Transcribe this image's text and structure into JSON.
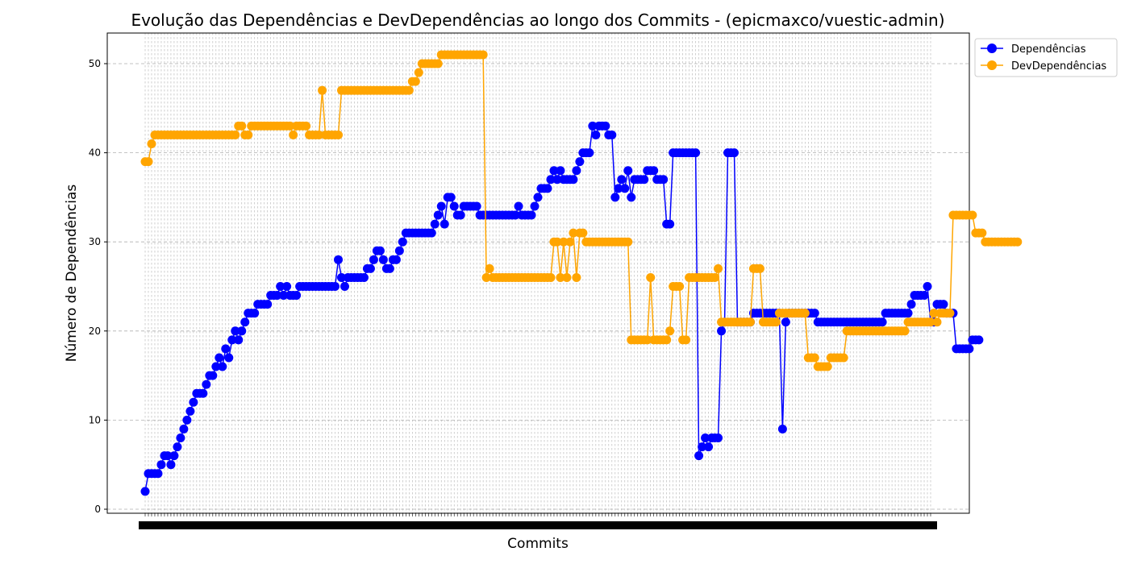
{
  "chart_data": {
    "type": "line",
    "title": "Evolução das Dependências e DevDependências ao longo dos Commits - (epicmaxco/vuestic-admin)",
    "xlabel": "Commits",
    "ylabel": "Número de Dependências",
    "ylim": [
      0,
      53
    ],
    "yticks": [
      0,
      10,
      20,
      30,
      40,
      50
    ],
    "grid": true,
    "legend_position": "top-right outside",
    "x_count": 245,
    "series": [
      {
        "name": "Dependências",
        "color": "#0000ff",
        "values": [
          2,
          4,
          4,
          4,
          4,
          5,
          6,
          6,
          5,
          6,
          7,
          8,
          9,
          10,
          11,
          12,
          13,
          13,
          13,
          14,
          15,
          15,
          16,
          17,
          16,
          18,
          17,
          19,
          20,
          19,
          20,
          21,
          22,
          22,
          22,
          23,
          23,
          23,
          23,
          24,
          24,
          24,
          25,
          24,
          25,
          24,
          24,
          24,
          25,
          25,
          25,
          25,
          25,
          25,
          25,
          25,
          25,
          25,
          25,
          25,
          28,
          26,
          25,
          26,
          26,
          26,
          26,
          26,
          26,
          27,
          27,
          28,
          29,
          29,
          28,
          27,
          27,
          28,
          28,
          29,
          30,
          31,
          31,
          31,
          31,
          31,
          31,
          31,
          31,
          31,
          32,
          33,
          34,
          32,
          35,
          35,
          34,
          33,
          33,
          34,
          34,
          34,
          34,
          34,
          33,
          33,
          33,
          33,
          33,
          33,
          33,
          33,
          33,
          33,
          33,
          33,
          34,
          33,
          33,
          33,
          33,
          34,
          35,
          36,
          36,
          36,
          37,
          38,
          37,
          38,
          37,
          37,
          37,
          37,
          38,
          39,
          40,
          40,
          40,
          43,
          42,
          43,
          43,
          43,
          42,
          42,
          35,
          36,
          37,
          36,
          38,
          35,
          37,
          37,
          37,
          37,
          38,
          38,
          38,
          37,
          37,
          37,
          32,
          32,
          40,
          40,
          40,
          40,
          40,
          40,
          40,
          40,
          6,
          7,
          8,
          7,
          8,
          8,
          8,
          20,
          21,
          40,
          40,
          40,
          21,
          21,
          21,
          21,
          21,
          22,
          22,
          22,
          22,
          22,
          22,
          22,
          22,
          22,
          9,
          21,
          22,
          22,
          22,
          22,
          22,
          22,
          22,
          22,
          22,
          21,
          21,
          21,
          21,
          21,
          21,
          21,
          21,
          21,
          21,
          21,
          21,
          21,
          21,
          21,
          21,
          21,
          21,
          21,
          21,
          21,
          22,
          22,
          22,
          22,
          22,
          22,
          22,
          22,
          23,
          24,
          24,
          24,
          24,
          25,
          21,
          21,
          23,
          23,
          23,
          22,
          22,
          22,
          18,
          18,
          18,
          18,
          18,
          19,
          19,
          19
        ]
      },
      {
        "name": "DevDependências",
        "color": "#ffa500",
        "values": [
          39,
          39,
          41,
          42,
          42,
          42,
          42,
          42,
          42,
          42,
          42,
          42,
          42,
          42,
          42,
          42,
          42,
          42,
          42,
          42,
          42,
          42,
          42,
          42,
          42,
          42,
          42,
          42,
          42,
          43,
          43,
          42,
          42,
          43,
          43,
          43,
          43,
          43,
          43,
          43,
          43,
          43,
          43,
          43,
          43,
          43,
          42,
          43,
          43,
          43,
          43,
          42,
          42,
          42,
          42,
          47,
          42,
          42,
          42,
          42,
          42,
          47,
          47,
          47,
          47,
          47,
          47,
          47,
          47,
          47,
          47,
          47,
          47,
          47,
          47,
          47,
          47,
          47,
          47,
          47,
          47,
          47,
          47,
          48,
          48,
          49,
          50,
          50,
          50,
          50,
          50,
          50,
          51,
          51,
          51,
          51,
          51,
          51,
          51,
          51,
          51,
          51,
          51,
          51,
          51,
          51,
          26,
          27,
          26,
          26,
          26,
          26,
          26,
          26,
          26,
          26,
          26,
          26,
          26,
          26,
          26,
          26,
          26,
          26,
          26,
          26,
          26,
          30,
          30,
          26,
          30,
          26,
          30,
          31,
          26,
          31,
          31,
          30,
          30,
          30,
          30,
          30,
          30,
          30,
          30,
          30,
          30,
          30,
          30,
          30,
          30,
          19,
          19,
          19,
          19,
          19,
          19,
          26,
          19,
          19,
          19,
          19,
          19,
          20,
          25,
          25,
          25,
          19,
          19,
          26,
          26,
          26,
          26,
          26,
          26,
          26,
          26,
          26,
          27,
          21,
          21,
          21,
          21,
          21,
          21,
          21,
          21,
          21,
          21,
          27,
          27,
          27,
          21,
          21,
          21,
          21,
          21,
          22,
          22,
          22,
          22,
          22,
          22,
          22,
          22,
          22,
          17,
          17,
          17,
          16,
          16,
          16,
          16,
          17,
          17,
          17,
          17,
          17,
          20,
          20,
          20,
          20,
          20,
          20,
          20,
          20,
          20,
          20,
          20,
          20,
          20,
          20,
          20,
          20,
          20,
          20,
          20,
          21,
          21,
          21,
          21,
          21,
          21,
          21,
          21,
          22,
          21,
          22,
          22,
          22,
          22,
          33,
          33,
          33,
          33,
          33,
          33,
          33,
          31,
          31,
          31,
          30,
          30,
          30,
          30,
          30,
          30,
          30,
          30,
          30,
          30,
          30
        ]
      }
    ]
  }
}
